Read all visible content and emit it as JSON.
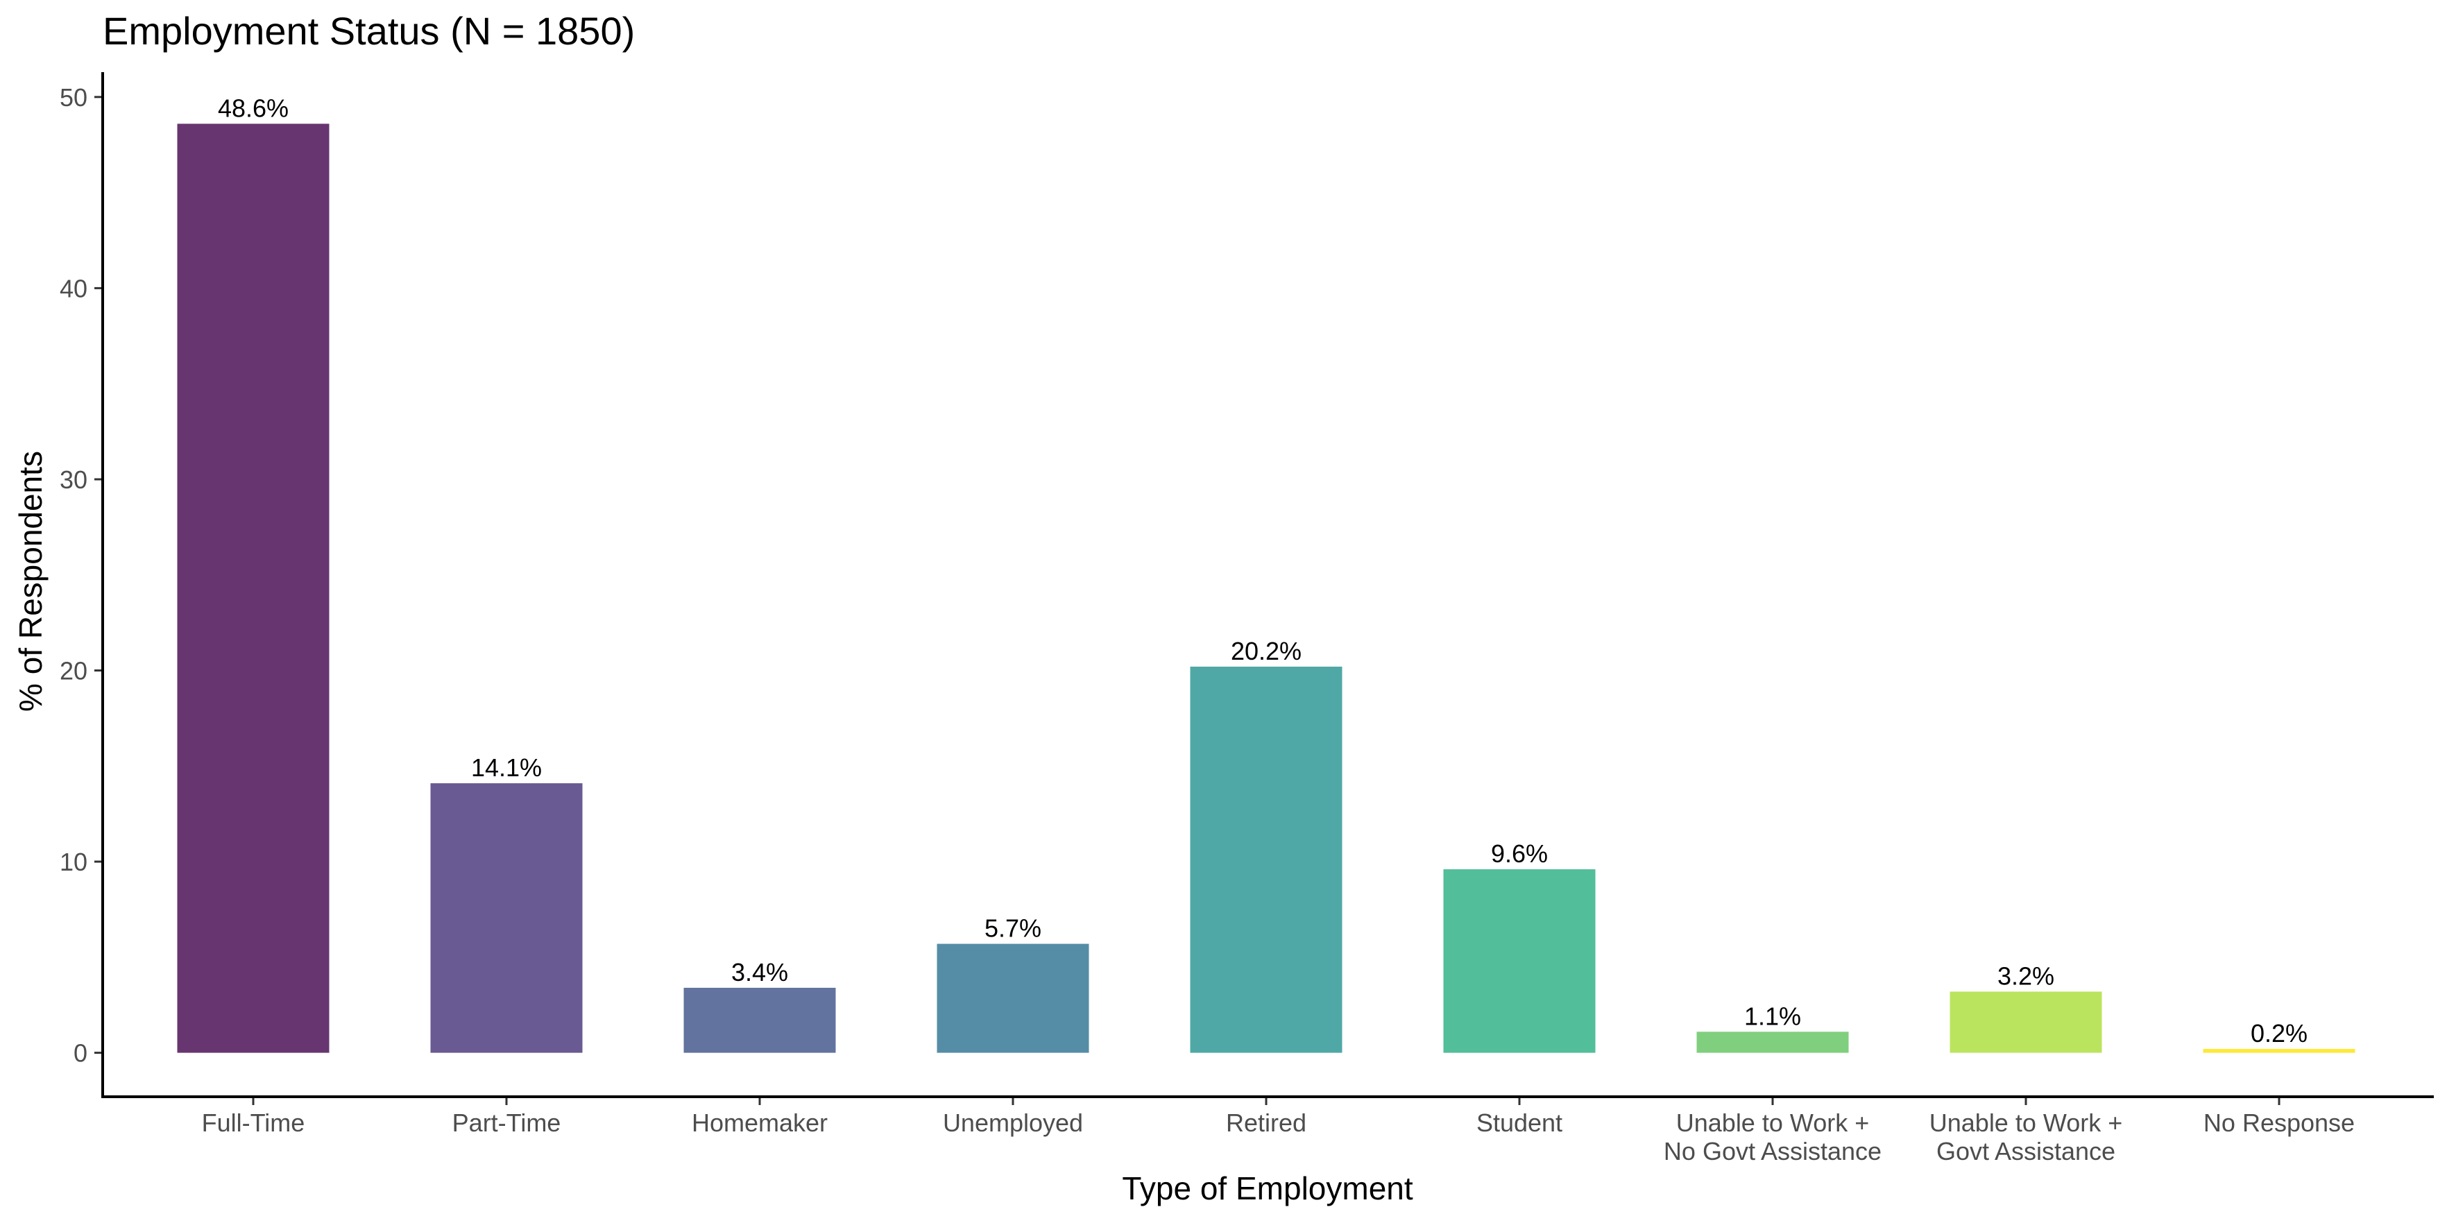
{
  "chart_data": {
    "type": "bar",
    "title": "Employment Status (N = 1850)",
    "xlabel": "Type of Employment",
    "ylabel": "% of Respondents",
    "ylim": [
      -2.3,
      51.3
    ],
    "yticks": [
      0,
      10,
      20,
      30,
      40,
      50
    ],
    "grid": false,
    "legend": "none",
    "categories": [
      [
        "Full-Time"
      ],
      [
        "Part-Time"
      ],
      [
        "Homemaker"
      ],
      [
        "Unemployed"
      ],
      [
        "Retired"
      ],
      [
        "Student"
      ],
      [
        "Unable to Work +",
        "No Govt Assistance"
      ],
      [
        "Unable to Work +",
        "Govt Assistance"
      ],
      [
        "No Response"
      ]
    ],
    "values": [
      48.6,
      14.1,
      3.4,
      5.7,
      20.2,
      9.6,
      1.1,
      3.2,
      0.2
    ],
    "data_labels": [
      "48.6%",
      "14.1%",
      "3.4%",
      "5.7%",
      "20.2%",
      "9.6%",
      "1.1%",
      "3.2%",
      "0.2%"
    ],
    "colors": [
      "#67356f",
      "#6a5a93",
      "#62739f",
      "#568da6",
      "#4fa8a6",
      "#52be9a",
      "#80cf7e",
      "#bbe45e",
      "#fde837"
    ]
  }
}
